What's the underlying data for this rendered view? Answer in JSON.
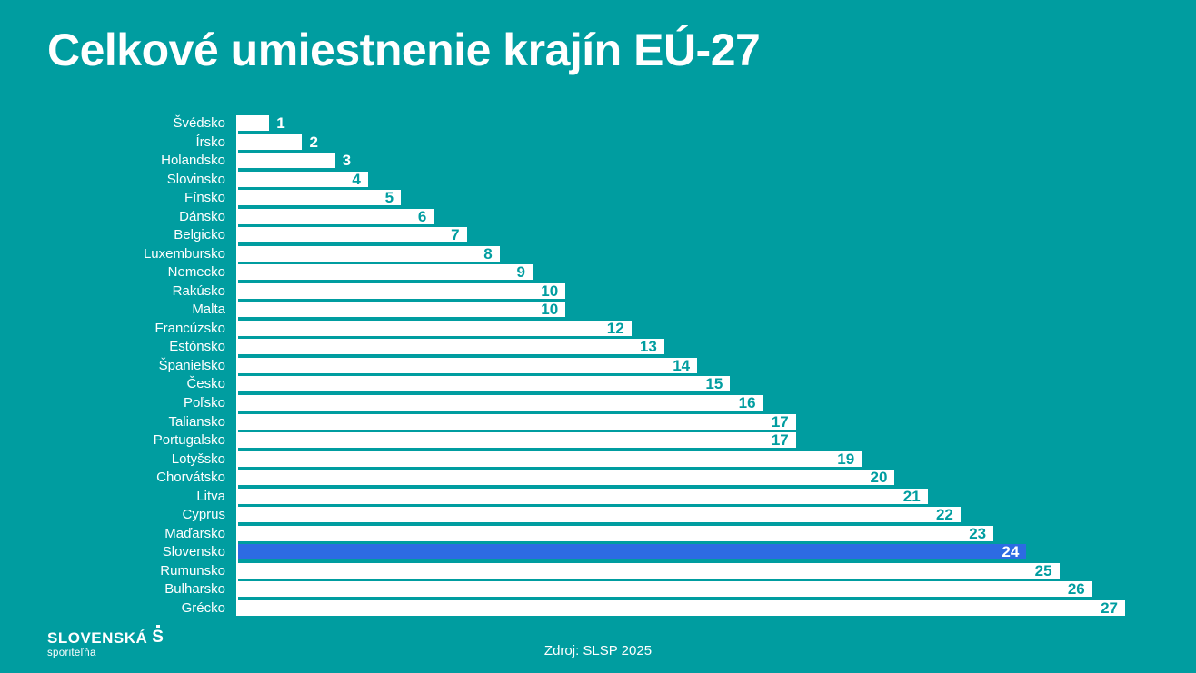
{
  "title": "Celkové umiestnenie krajín EÚ-27",
  "source": "Zdroj: SLSP 2025",
  "logo": {
    "name": "SLOVENSKÁ",
    "symbol": "S",
    "subtitle": "sporiteľňa"
  },
  "colors": {
    "background": "#009da0",
    "bar": "#ffffff",
    "highlight": "#2d6be3",
    "title_text": "#ffffff",
    "value_inside": "#009da0",
    "value_on_highlight": "#ffffff"
  },
  "chart_data": {
    "type": "bar",
    "orientation": "horizontal",
    "title": "Celkové umiestnenie krajín EÚ-27",
    "xlabel": "",
    "ylabel": "",
    "xlim": [
      0,
      27
    ],
    "grid": false,
    "legend": false,
    "categories": [
      "Švédsko",
      "Írsko",
      "Holandsko",
      "Slovinsko",
      "Fínsko",
      "Dánsko",
      "Belgicko",
      "Luxembursko",
      "Nemecko",
      "Rakúsko",
      "Malta",
      "Francúzsko",
      "Estónsko",
      "Španielsko",
      "Česko",
      "Poľsko",
      "Taliansko",
      "Portugalsko",
      "Lotyšsko",
      "Chorvátsko",
      "Litva",
      "Cyprus",
      "Maďarsko",
      "Slovensko",
      "Rumunsko",
      "Bulharsko",
      "Grécko"
    ],
    "values": [
      1,
      2,
      3,
      4,
      5,
      6,
      7,
      8,
      9,
      10,
      10,
      12,
      13,
      14,
      15,
      16,
      17,
      17,
      19,
      20,
      21,
      22,
      23,
      24,
      25,
      26,
      27
    ],
    "highlight_category": "Slovensko",
    "bar_color": "#ffffff",
    "highlight_color": "#2d6be3"
  }
}
